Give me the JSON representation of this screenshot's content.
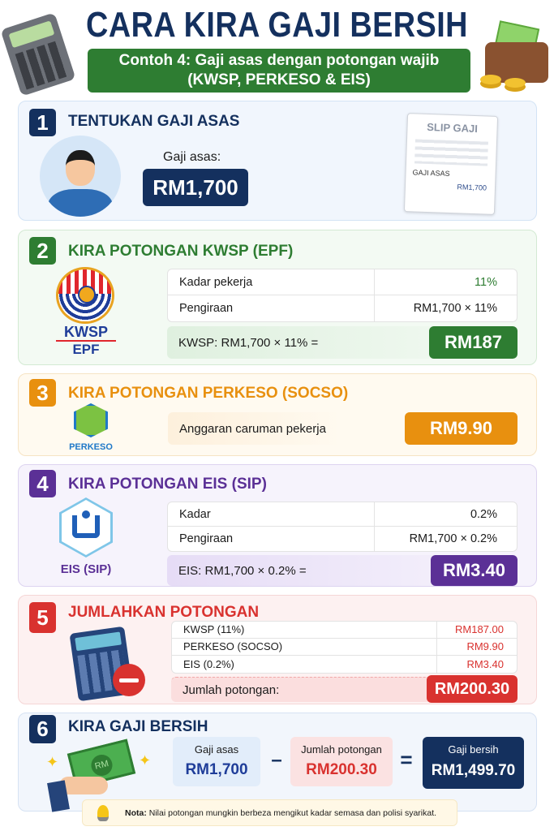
{
  "header": {
    "title": "CARA KIRA GAJI BERSIH",
    "subtitle_line1": "Contoh 4: Gaji asas dengan potongan wajib",
    "subtitle_line2": "(KWSP, PERKESO & EIS)"
  },
  "colors": {
    "navy": "#14305e",
    "green": "#2e7d32",
    "orange": "#e8900f",
    "purple": "#5b3096",
    "red": "#d9322f"
  },
  "step1": {
    "number": "1",
    "title": "TENTUKAN GAJI ASAS",
    "label": "Gaji asas:",
    "value": "RM1,700",
    "slip": {
      "title": "SLIP GAJI",
      "label": "GAJI ASAS",
      "value": "RM1,700"
    }
  },
  "step2": {
    "number": "2",
    "title": "KIRA POTONGAN KWSP (EPF)",
    "logo_text1": "KWSP",
    "logo_text2": "EPF",
    "rows": [
      {
        "label": "Kadar pekerja",
        "value": "11%"
      },
      {
        "label": "Pengiraan",
        "value": "RM1,700 × 11%"
      }
    ],
    "formula": "KWSP: RM1,700 × 11% =",
    "result": "RM187"
  },
  "step3": {
    "number": "3",
    "title": "KIRA POTONGAN PERKESO (SOCSO)",
    "logo_text": "PERKESO",
    "label": "Anggaran caruman pekerja",
    "result": "RM9.90"
  },
  "step4": {
    "number": "4",
    "title": "KIRA POTONGAN EIS (SIP)",
    "logo_text": "EIS (SIP)",
    "rows": [
      {
        "label": "Kadar",
        "value": "0.2%"
      },
      {
        "label": "Pengiraan",
        "value": "RM1,700 × 0.2%"
      }
    ],
    "formula": "EIS: RM1,700 × 0.2% =",
    "result": "RM3.40"
  },
  "step5": {
    "number": "5",
    "title": "JUMLAHKAN POTONGAN",
    "rows": [
      {
        "label": "KWSP (11%)",
        "value": "RM187.00"
      },
      {
        "label": "PERKESO (SOCSO)",
        "value": "RM9.90"
      },
      {
        "label": "EIS (0.2%)",
        "value": "RM3.40"
      }
    ],
    "total_label": "Jumlah potongan:",
    "total": "RM200.30"
  },
  "step6": {
    "number": "6",
    "title": "KIRA GAJI BERSIH",
    "money_label": "RM",
    "gross": {
      "label": "Gaji asas",
      "value": "RM1,700"
    },
    "minus": "–",
    "deduction": {
      "label": "Jumlah potongan",
      "value": "RM200.30"
    },
    "equals": "=",
    "net": {
      "label": "Gaji bersih",
      "value": "RM1,499.70"
    }
  },
  "note": {
    "prefix": "Nota:",
    "text": " Nilai potongan mungkin berbeza mengikut kadar semasa dan polisi syarikat."
  }
}
